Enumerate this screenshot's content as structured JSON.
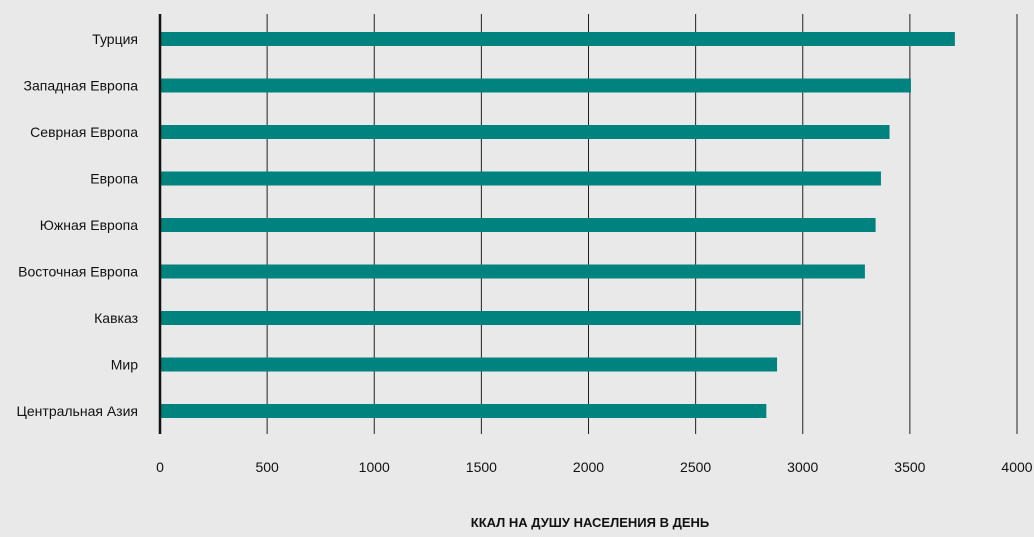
{
  "chart_data": {
    "type": "bar",
    "orientation": "horizontal",
    "categories": [
      "Турция",
      "Западная Европа",
      "Севрная Европа",
      "Европа",
      "Южная Европа",
      "Восточная Европа",
      "Кавказ",
      "Мир",
      "Центральная Азия"
    ],
    "values": [
      3710,
      3505,
      3405,
      3365,
      3340,
      3290,
      2990,
      2880,
      2830
    ],
    "xlabel": "ККАЛ НА ДУШУ НАСЕЛЕНИЯ В ДЕНЬ",
    "xlim": [
      0,
      4000
    ],
    "xticks": [
      "0",
      "500",
      "1000",
      "1500",
      "2000",
      "2500",
      "3000",
      "3500",
      "4000"
    ],
    "grid": "vertical",
    "colors": {
      "bar": "#00827f",
      "grid": "#222222",
      "axis": "#111111",
      "background": "#e9e9e9"
    }
  }
}
